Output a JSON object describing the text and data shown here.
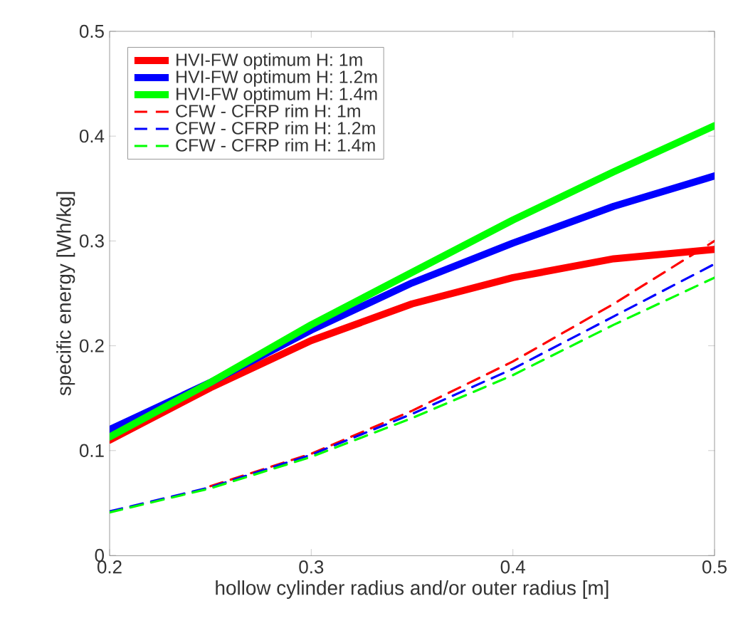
{
  "chart_data": {
    "type": "line",
    "xlabel": "hollow cylinder radius and/or outer radius [m]",
    "ylabel": "specific energy [Wh/kg]",
    "x": [
      0.2,
      0.25,
      0.3,
      0.35,
      0.4,
      0.45,
      0.5
    ],
    "xlim": [
      0.2,
      0.5
    ],
    "xticks": [
      0.2,
      0.3,
      0.4,
      0.5
    ],
    "ylim": [
      0,
      0.5
    ],
    "yticks": [
      0,
      0.1,
      0.2,
      0.3,
      0.4,
      0.5
    ],
    "grid": false,
    "legend": "top left",
    "marker": "none",
    "series": [
      {
        "name": "HVI-FW optimum H: 1m",
        "color": "#ff0000",
        "line_style": "solid",
        "values": [
          0.11,
          0.16,
          0.205,
          0.24,
          0.265,
          0.283,
          0.292
        ]
      },
      {
        "name": "HVI-FW optimum H: 1.2m",
        "color": "#0000ff",
        "line_style": "solid",
        "values": [
          0.12,
          0.165,
          0.215,
          0.26,
          0.298,
          0.333,
          0.362
        ]
      },
      {
        "name": "HVI-FW optimum H: 1.4m",
        "color": "#00ff00",
        "line_style": "solid",
        "values": [
          0.113,
          0.165,
          0.22,
          0.27,
          0.32,
          0.366,
          0.41
        ]
      },
      {
        "name": "CFW - CFRP rim H: 1m",
        "color": "#ff0000",
        "line_style": "dashed",
        "values": [
          null,
          0.066,
          0.097,
          0.138,
          0.185,
          0.24,
          0.3
        ]
      },
      {
        "name": "CFW - CFRP rim H: 1.2m",
        "color": "#0000ff",
        "line_style": "dashed",
        "values": [
          0.042,
          0.065,
          0.096,
          0.135,
          0.178,
          0.228,
          0.278
        ]
      },
      {
        "name": "CFW - CFRP rim H: 1.4m",
        "color": "#00ff00",
        "line_style": "dashed",
        "values": [
          0.041,
          0.064,
          0.094,
          0.131,
          0.172,
          0.22,
          0.265
        ]
      }
    ]
  }
}
